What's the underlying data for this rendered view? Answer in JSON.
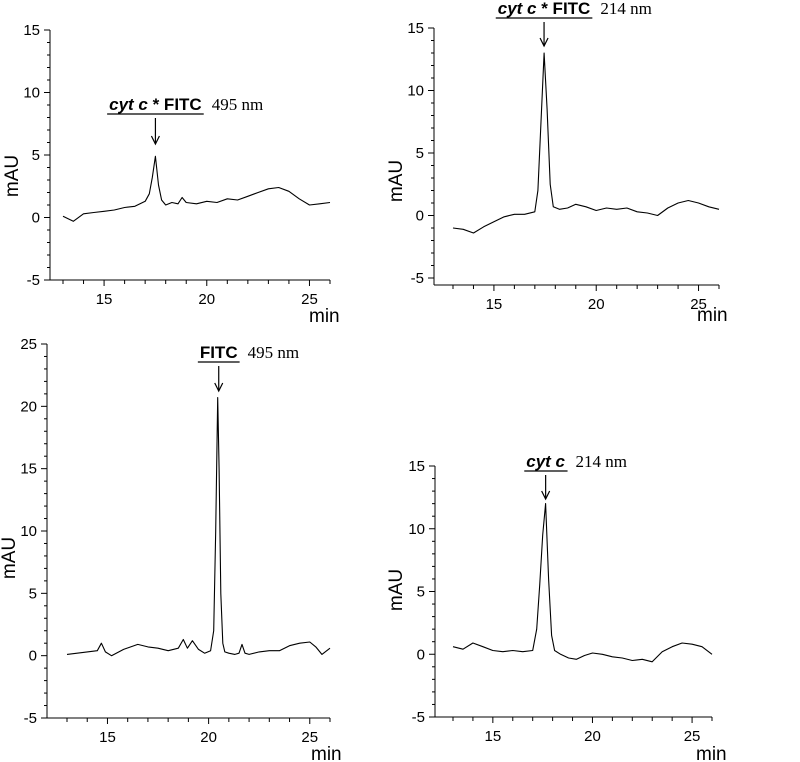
{
  "chart_data": [
    {
      "type": "line",
      "xlabel": "min",
      "ylabel": "mAU",
      "xlim": [
        13,
        26
      ],
      "ylim": [
        -5,
        15
      ],
      "xticks": [
        15,
        20,
        25
      ],
      "yticks": [
        -5,
        0,
        5,
        10,
        15
      ],
      "annotation": {
        "name_parts": [
          {
            "text": "cyt c",
            "italic": true
          },
          {
            "text": " * FITC",
            "italic": false
          }
        ],
        "wavelength": "495 nm",
        "x": 17.5
      },
      "series": [
        {
          "x": [
            13.0,
            13.5,
            14.0,
            14.5,
            15.0,
            15.5,
            16.0,
            16.5,
            17.0,
            17.2,
            17.35,
            17.5,
            17.65,
            17.8,
            18.0,
            18.3,
            18.6,
            18.8,
            19.0,
            19.5,
            20.0,
            20.5,
            21.0,
            21.5,
            22.0,
            22.5,
            23.0,
            23.5,
            24.0,
            24.5,
            25.0,
            25.5,
            26.0
          ],
          "y": [
            0.1,
            -0.3,
            0.3,
            0.4,
            0.5,
            0.6,
            0.8,
            0.9,
            1.3,
            1.9,
            3.2,
            4.9,
            2.6,
            1.4,
            1.0,
            1.2,
            1.1,
            1.6,
            1.2,
            1.1,
            1.3,
            1.2,
            1.5,
            1.4,
            1.7,
            2.0,
            2.3,
            2.4,
            2.1,
            1.5,
            1.0,
            1.1,
            1.2
          ]
        }
      ]
    },
    {
      "type": "line",
      "xlabel": "min",
      "ylabel": "mAU",
      "xlim": [
        13,
        26
      ],
      "ylim": [
        -5,
        15
      ],
      "xticks": [
        15,
        20,
        25
      ],
      "yticks": [
        -5,
        0,
        5,
        10,
        15
      ],
      "annotation": {
        "name_parts": [
          {
            "text": "cyt c",
            "italic": true
          },
          {
            "text": " * FITC",
            "italic": false
          }
        ],
        "wavelength": "214 nm",
        "x": 17.45
      },
      "series": [
        {
          "x": [
            13.0,
            13.5,
            14.0,
            14.5,
            15.0,
            15.5,
            16.0,
            16.5,
            17.0,
            17.15,
            17.3,
            17.45,
            17.6,
            17.75,
            17.9,
            18.2,
            18.6,
            19.0,
            19.5,
            20.0,
            20.5,
            21.0,
            21.5,
            22.0,
            22.5,
            23.0,
            23.5,
            24.0,
            24.5,
            25.0,
            25.5,
            26.0
          ],
          "y": [
            -1.0,
            -1.1,
            -1.4,
            -0.9,
            -0.5,
            -0.1,
            0.1,
            0.1,
            0.3,
            2.0,
            7.5,
            13.0,
            8.5,
            2.5,
            0.7,
            0.5,
            0.6,
            0.9,
            0.7,
            0.4,
            0.6,
            0.5,
            0.6,
            0.3,
            0.2,
            0.0,
            0.6,
            1.0,
            1.2,
            1.0,
            0.7,
            0.5
          ]
        }
      ]
    },
    {
      "type": "line",
      "xlabel": "min",
      "ylabel": "mAU",
      "xlim": [
        13,
        26
      ],
      "ylim": [
        -5,
        25
      ],
      "xticks": [
        15,
        20,
        25
      ],
      "yticks": [
        -5,
        0,
        5,
        10,
        15,
        20,
        25
      ],
      "annotation": {
        "name_parts": [
          {
            "text": "FITC",
            "italic": false
          }
        ],
        "wavelength": "495 nm",
        "x": 20.5
      },
      "series": [
        {
          "x": [
            13.0,
            13.5,
            14.0,
            14.5,
            14.7,
            14.9,
            15.2,
            15.8,
            16.5,
            17.0,
            17.5,
            18.0,
            18.5,
            18.75,
            18.95,
            19.2,
            19.5,
            19.8,
            20.1,
            20.25,
            20.35,
            20.45,
            20.52,
            20.6,
            20.7,
            20.8,
            21.0,
            21.3,
            21.5,
            21.65,
            21.8,
            22.0,
            22.5,
            23.0,
            23.5,
            24.0,
            24.5,
            25.0,
            25.3,
            25.6,
            26.0
          ],
          "y": [
            0.1,
            0.2,
            0.3,
            0.4,
            1.0,
            0.3,
            0.0,
            0.5,
            0.9,
            0.7,
            0.6,
            0.4,
            0.6,
            1.3,
            0.6,
            1.2,
            0.5,
            0.2,
            0.4,
            2.0,
            10.0,
            20.7,
            15.0,
            5.0,
            1.0,
            0.3,
            0.2,
            0.1,
            0.2,
            0.9,
            0.2,
            0.1,
            0.3,
            0.4,
            0.4,
            0.8,
            1.0,
            1.1,
            0.7,
            0.1,
            0.6
          ]
        }
      ]
    },
    {
      "type": "line",
      "xlabel": "min",
      "ylabel": "mAU",
      "xlim": [
        13,
        26
      ],
      "ylim": [
        -5,
        15
      ],
      "xticks": [
        15,
        20,
        25
      ],
      "yticks": [
        -5,
        0,
        5,
        10,
        15
      ],
      "annotation": {
        "name_parts": [
          {
            "text": "cyt c",
            "italic": true
          }
        ],
        "wavelength": "214 nm",
        "x": 17.65
      },
      "series": [
        {
          "x": [
            13.0,
            13.5,
            14.0,
            14.5,
            15.0,
            15.5,
            16.0,
            16.5,
            17.0,
            17.2,
            17.35,
            17.5,
            17.65,
            17.8,
            17.95,
            18.1,
            18.4,
            18.8,
            19.2,
            19.6,
            20.0,
            20.5,
            21.0,
            21.5,
            22.0,
            22.5,
            23.0,
            23.5,
            24.0,
            24.5,
            25.0,
            25.5,
            26.0
          ],
          "y": [
            0.6,
            0.4,
            0.9,
            0.6,
            0.3,
            0.2,
            0.3,
            0.2,
            0.3,
            2.0,
            5.5,
            9.5,
            12.0,
            6.0,
            1.5,
            0.3,
            0.0,
            -0.3,
            -0.4,
            -0.1,
            0.1,
            0.0,
            -0.2,
            -0.3,
            -0.5,
            -0.4,
            -0.6,
            0.2,
            0.6,
            0.9,
            0.8,
            0.6,
            0.0
          ]
        }
      ]
    }
  ]
}
